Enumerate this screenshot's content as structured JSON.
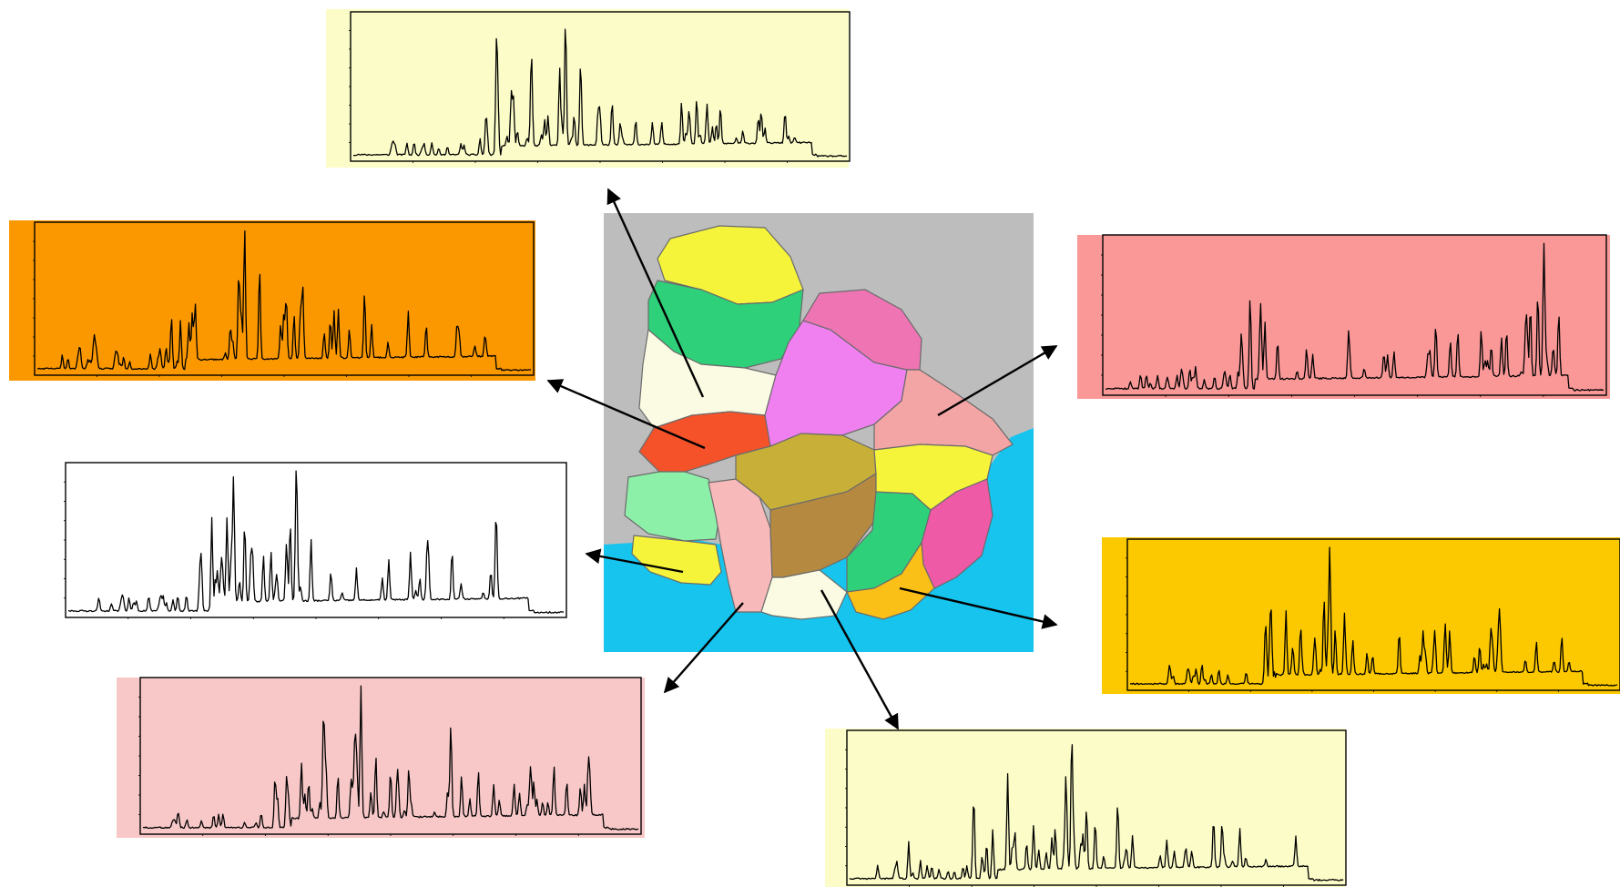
{
  "colors": {
    "map_background": "#bdbdbd",
    "water": "#16c4ee",
    "arrow": "#000000",
    "trace": "#000000"
  },
  "map_regions": [
    {
      "name": "north-yellow",
      "color": "#f6f43a"
    },
    {
      "name": "north-green",
      "color": "#2ed07a"
    },
    {
      "name": "west-cream",
      "color": "#fbfbe3"
    },
    {
      "name": "west-red-orange",
      "color": "#f5522a"
    },
    {
      "name": "central-violet",
      "color": "#f080f0"
    },
    {
      "name": "northeast-pink",
      "color": "#ee74b4"
    },
    {
      "name": "east-salmon",
      "color": "#f3a4a4"
    },
    {
      "name": "southwest-mint",
      "color": "#8df0a8"
    },
    {
      "name": "southwest-yellow",
      "color": "#f6f43a"
    },
    {
      "name": "south-light-pink",
      "color": "#f7b9b9"
    },
    {
      "name": "center-olive",
      "color": "#c8b038"
    },
    {
      "name": "center-brown",
      "color": "#b58a40"
    },
    {
      "name": "south-cream",
      "color": "#fbfbe3"
    },
    {
      "name": "southeast-green",
      "color": "#2ed07a"
    },
    {
      "name": "east-yellow",
      "color": "#f6f43a"
    },
    {
      "name": "east-magenta",
      "color": "#ee5aa6"
    },
    {
      "name": "southeast-orange",
      "color": "#fbc018"
    }
  ],
  "panels": [
    {
      "id": "top",
      "background": "#fcfcc8"
    },
    {
      "id": "upper-left",
      "background": "#fb9800"
    },
    {
      "id": "middle-left",
      "background": "#ffffff"
    },
    {
      "id": "lower-left",
      "background": "#f8c8c8"
    },
    {
      "id": "bottom-right",
      "background": "#fcfcc8"
    },
    {
      "id": "upper-right",
      "background": "#fa9898"
    },
    {
      "id": "lower-right",
      "background": "#fcc800"
    }
  ]
}
